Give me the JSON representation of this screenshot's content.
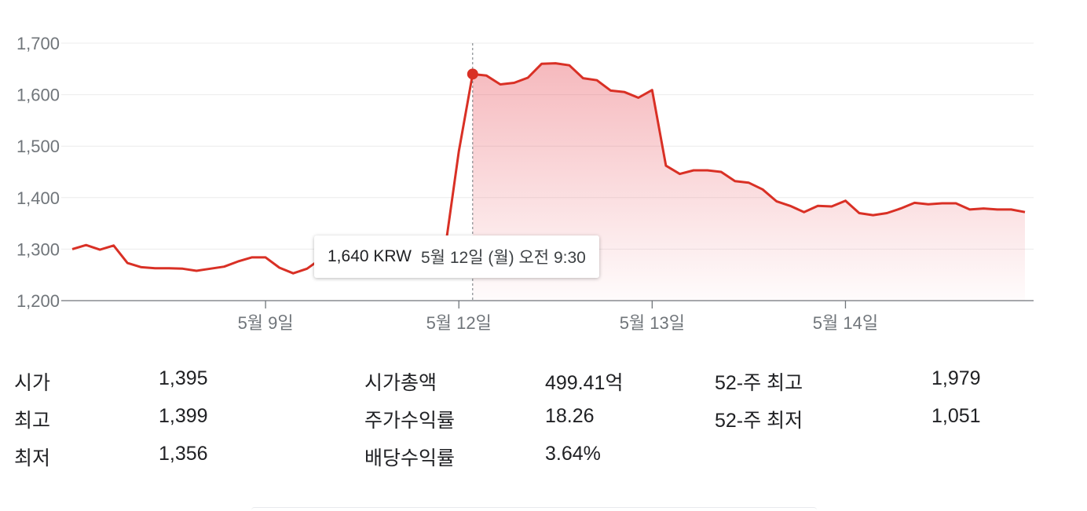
{
  "chart_data": {
    "type": "area",
    "title": "",
    "xlabel": "",
    "ylabel": "",
    "ylim": [
      1200,
      1700
    ],
    "yticks": [
      1700,
      1600,
      1500,
      1400,
      1300,
      1200
    ],
    "ytick_labels": [
      "1,700",
      "1,600",
      "1,500",
      "1,400",
      "1,300",
      "1,200"
    ],
    "xtick_labels": [
      "5월 9일",
      "5월 12일",
      "5월 13일",
      "5월 14일"
    ],
    "grid": true,
    "line_color": "#d93025",
    "series": [
      {
        "values": [
          1300,
          1308,
          1299,
          1307,
          1273,
          1265,
          1263,
          1263,
          1262,
          1258,
          1262,
          1266,
          1276,
          1284,
          1284,
          1264,
          1253,
          1262,
          1281,
          1296,
          1300,
          1300,
          1300,
          1300,
          1300,
          1300,
          1300,
          1300,
          1490,
          1640,
          1637,
          1620,
          1623,
          1633,
          1660,
          1661,
          1657,
          1632,
          1628,
          1608,
          1605,
          1594,
          1609,
          1462,
          1446,
          1453,
          1453,
          1450,
          1432,
          1429,
          1416,
          1393,
          1384,
          1372,
          1384,
          1383,
          1394,
          1370,
          1366,
          1370,
          1379,
          1390,
          1387,
          1389,
          1389,
          1377,
          1379,
          1377,
          1377,
          1372
        ]
      }
    ],
    "highlight": {
      "index": 29,
      "value": 1640
    }
  },
  "tooltip": {
    "price": "1,640 KRW",
    "time": "5월 12일 (월) 오전 9:30"
  },
  "stats": {
    "rows": [
      [
        "시가",
        "1,395",
        "시가총액",
        "499.41억",
        "52-주 최고",
        "1,979"
      ],
      [
        "최고",
        "1,399",
        "주가수익률",
        "18.26",
        "52-주 최저",
        "1,051"
      ],
      [
        "최저",
        "1,356",
        "배당수익률",
        "3.64%",
        "",
        ""
      ]
    ]
  },
  "colors": {
    "accent": "#d93025",
    "grid": "#ececec",
    "axis": "#70757a",
    "text": "#202124"
  }
}
